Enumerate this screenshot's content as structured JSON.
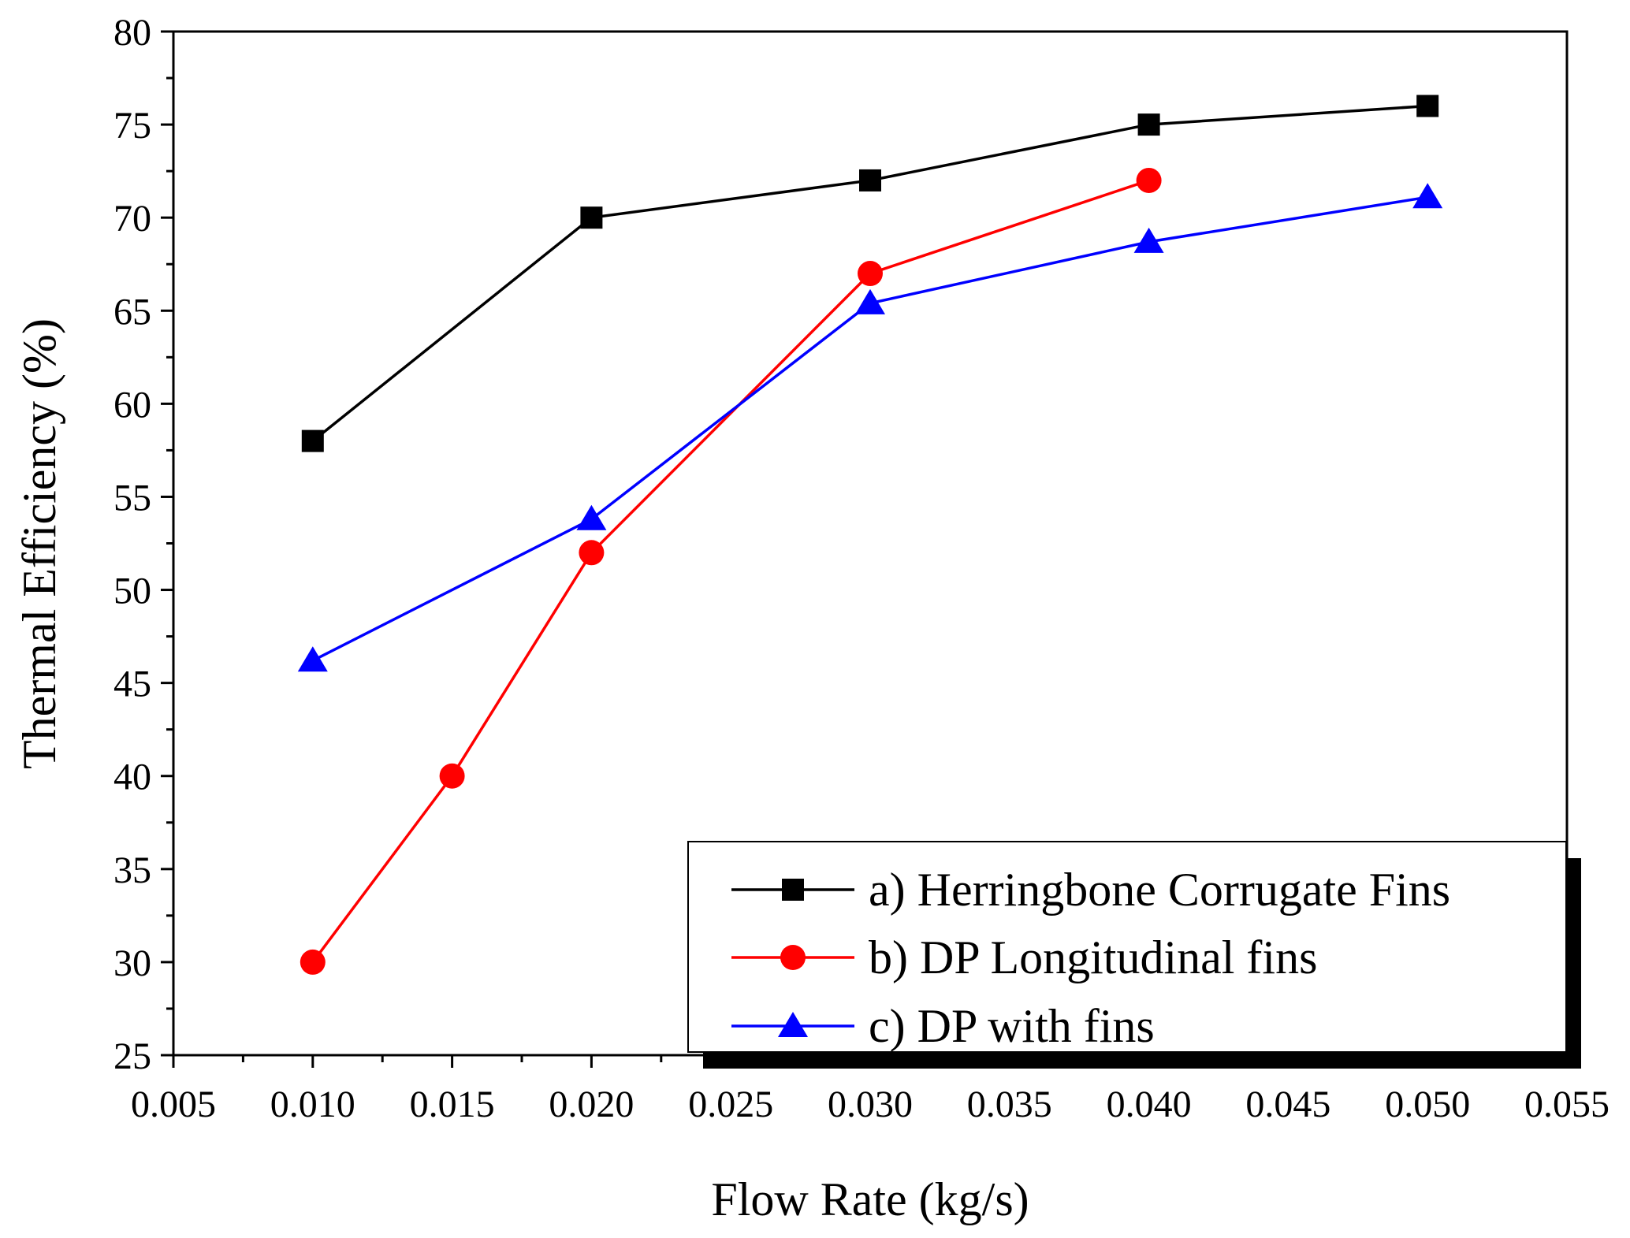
{
  "chart_data": {
    "type": "line",
    "title": "",
    "xlabel": "Flow Rate (kg/s)",
    "ylabel": "Thermal Efficiency (%)",
    "xlim": [
      0.005,
      0.055
    ],
    "ylim": [
      25,
      80
    ],
    "x_ticks": [
      0.005,
      0.01,
      0.015,
      0.02,
      0.025,
      0.03,
      0.035,
      0.04,
      0.045,
      0.05,
      0.055
    ],
    "x_tick_labels": [
      "0.005",
      "0.010",
      "0.015",
      "0.020",
      "0.025",
      "0.030",
      "0.035",
      "0.040",
      "0.045",
      "0.050",
      "0.055"
    ],
    "y_ticks": [
      25,
      30,
      35,
      40,
      45,
      50,
      55,
      60,
      65,
      70,
      75,
      80
    ],
    "y_tick_labels": [
      "25",
      "30",
      "35",
      "40",
      "45",
      "50",
      "55",
      "60",
      "65",
      "70",
      "75",
      "80"
    ],
    "grid": false,
    "legend_position": "bottom-right",
    "series": [
      {
        "name": "a) Herringbone Corrugate Fins",
        "color": "#000000",
        "marker": "square",
        "x": [
          0.01,
          0.02,
          0.03,
          0.04,
          0.05
        ],
        "y": [
          58,
          70,
          72,
          75,
          76
        ]
      },
      {
        "name": "b) DP Longitudinal fins",
        "color": "#ff0000",
        "marker": "circle",
        "x": [
          0.01,
          0.015,
          0.02,
          0.03,
          0.04
        ],
        "y": [
          30,
          40,
          52,
          67,
          72
        ]
      },
      {
        "name": "c) DP with fins",
        "color": "#0000ff",
        "marker": "triangle",
        "x": [
          0.01,
          0.02,
          0.03,
          0.04,
          0.05
        ],
        "y": [
          46.2,
          53.8,
          65.4,
          68.7,
          71.1
        ]
      }
    ]
  }
}
